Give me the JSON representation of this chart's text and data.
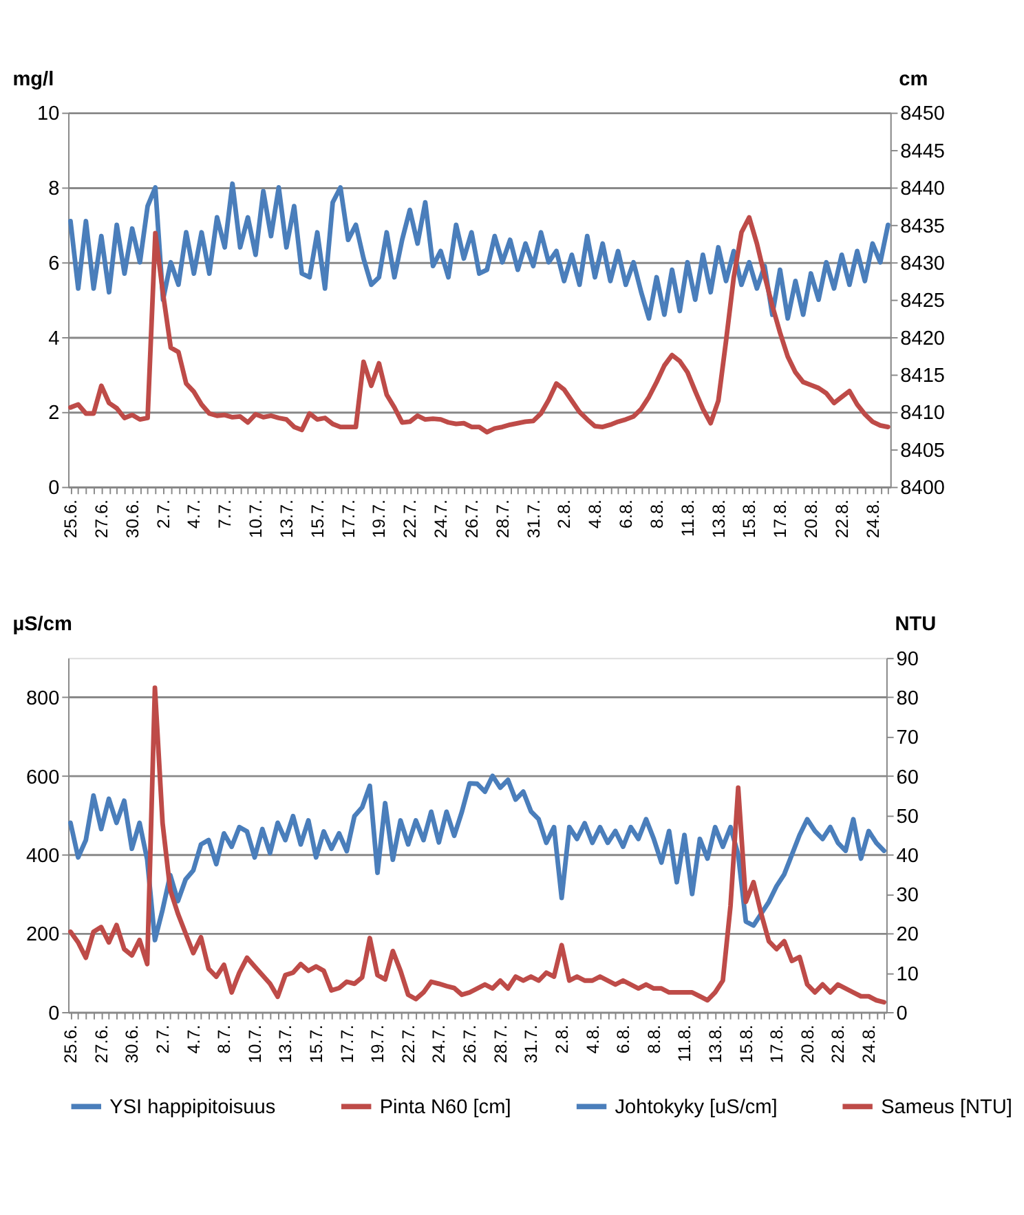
{
  "chart_data": [
    {
      "type": "line",
      "ylabel": "mg/l",
      "y2label": "cm",
      "ylim": [
        0,
        10
      ],
      "yticks": [
        0,
        2,
        4,
        6,
        8,
        10
      ],
      "y2lim": [
        8400,
        8450
      ],
      "y2ticks": [
        8400,
        8405,
        8410,
        8415,
        8420,
        8425,
        8430,
        8435,
        8440,
        8445,
        8450
      ],
      "grid": "y",
      "legend": "bottom",
      "categories": [
        "25.6.",
        null,
        null,
        null,
        "27.6.",
        null,
        null,
        null,
        "30.6.",
        null,
        null,
        null,
        "2.7.",
        null,
        null,
        null,
        "4.7.",
        null,
        null,
        null,
        "7.7.",
        null,
        null,
        null,
        "10.7.",
        null,
        null,
        null,
        "13.7.",
        null,
        null,
        null,
        "15.7.",
        null,
        null,
        null,
        "17.7.",
        null,
        null,
        null,
        "19.7.",
        null,
        null,
        null,
        "22.7.",
        null,
        null,
        null,
        "24.7.",
        null,
        null,
        null,
        "26.7.",
        null,
        null,
        null,
        "28.7.",
        null,
        null,
        null,
        "31.7.",
        null,
        null,
        null,
        "2.8.",
        null,
        null,
        null,
        "4.8.",
        null,
        null,
        null,
        "6.8.",
        null,
        null,
        null,
        "8.8.",
        null,
        null,
        null,
        "11.8.",
        null,
        null,
        null,
        "13.8.",
        null,
        null,
        null,
        "15.8.",
        null,
        null,
        null,
        "17.8.",
        null,
        null,
        null,
        "20.8.",
        null,
        null,
        null,
        "22.8.",
        null,
        null,
        null,
        "24.8.",
        null,
        null
      ],
      "series": [
        {
          "name": "YSI happipitoisuus",
          "color": "#4a7ebb",
          "values": [
            7.1,
            5.3,
            7.1,
            5.3,
            6.7,
            5.2,
            7.0,
            5.7,
            6.9,
            6.0,
            7.5,
            8.0,
            5.0,
            6.0,
            5.4,
            6.8,
            5.7,
            6.8,
            5.7,
            7.2,
            6.4,
            8.1,
            6.4,
            7.2,
            6.2,
            7.9,
            6.7,
            8.0,
            6.4,
            7.5,
            5.7,
            5.6,
            6.8,
            5.3,
            7.6,
            8.0,
            6.6,
            7.0,
            6.1,
            5.4,
            5.6,
            6.8,
            5.6,
            6.6,
            7.4,
            6.5,
            7.6,
            5.9,
            6.3,
            5.6,
            7.0,
            6.1,
            6.8,
            5.7,
            5.8,
            6.7,
            6.0,
            6.6,
            5.8,
            6.5,
            5.9,
            6.8,
            6.0,
            6.3,
            5.5,
            6.2,
            5.4,
            6.7,
            5.6,
            6.5,
            5.5,
            6.3,
            5.4,
            6.0,
            5.2,
            4.5,
            5.6,
            4.6,
            5.8,
            4.7,
            6.0,
            5.0,
            6.2,
            5.2,
            6.4,
            5.5,
            6.3,
            5.4,
            6.0,
            5.3,
            5.9,
            4.6,
            5.8,
            4.5,
            5.5,
            4.6,
            5.7,
            5.0,
            6.0,
            5.3,
            6.2,
            5.4,
            6.3,
            5.5,
            6.5,
            6.0,
            7.0
          ]
        },
        {
          "name": "Pinta N60 [cm]",
          "color": "#be4b48",
          "axis": "y2",
          "values": [
            8410.6,
            8411.0,
            8409.8,
            8409.8,
            8413.5,
            8411.2,
            8410.5,
            8409.2,
            8409.6,
            8409.0,
            8409.2,
            8433.9,
            8425.8,
            8418.6,
            8418.0,
            8413.8,
            8412.7,
            8411.0,
            8409.8,
            8409.5,
            8409.6,
            8409.3,
            8409.4,
            8408.6,
            8409.7,
            8409.3,
            8409.5,
            8409.2,
            8409.0,
            8408.0,
            8407.6,
            8409.8,
            8409.0,
            8409.2,
            8408.4,
            8408.0,
            8408.0,
            8408.0,
            8416.7,
            8413.5,
            8416.5,
            8412.3,
            8410.6,
            8408.6,
            8408.7,
            8409.5,
            8409.0,
            8409.1,
            8409.0,
            8408.6,
            8408.4,
            8408.5,
            8408.0,
            8408.0,
            8407.3,
            8407.8,
            8408.0,
            8408.3,
            8408.5,
            8408.7,
            8408.8,
            8409.8,
            8411.6,
            8413.8,
            8413.0,
            8411.5,
            8410.0,
            8409.0,
            8408.1,
            8408.0,
            8408.3,
            8408.7,
            8409.0,
            8409.4,
            8410.4,
            8412.0,
            8414.0,
            8416.2,
            8417.6,
            8416.8,
            8415.3,
            8412.8,
            8410.4,
            8408.5,
            8411.5,
            8419.5,
            8428.0,
            8434.0,
            8436.0,
            8432.5,
            8428.2,
            8424.2,
            8420.6,
            8417.4,
            8415.3,
            8414.0,
            8413.6,
            8413.2,
            8412.5,
            8411.2,
            8412.0,
            8412.8,
            8411.0,
            8409.7,
            8408.7,
            8408.2,
            8408.0
          ]
        }
      ]
    },
    {
      "type": "line",
      "ylabel": "µS/cm",
      "y2label": "NTU",
      "ylim": [
        0,
        900
      ],
      "yticks": [
        0,
        200,
        400,
        600,
        800
      ],
      "y2lim": [
        0,
        90
      ],
      "y2ticks": [
        0,
        10,
        20,
        30,
        40,
        50,
        60,
        70,
        80,
        90
      ],
      "grid": "y",
      "legend": "bottom",
      "categories": [
        "25.6.",
        null,
        null,
        null,
        "27.6.",
        null,
        null,
        null,
        "30.6.",
        null,
        null,
        null,
        "2.7.",
        null,
        null,
        null,
        "4.7.",
        null,
        null,
        null,
        "8.7.",
        null,
        null,
        null,
        "10.7.",
        null,
        null,
        null,
        "13.7.",
        null,
        null,
        null,
        "15.7.",
        null,
        null,
        null,
        "17.7.",
        null,
        null,
        null,
        "19.7.",
        null,
        null,
        null,
        "22.7.",
        null,
        null,
        null,
        "24.7.",
        null,
        null,
        null,
        "26.7.",
        null,
        null,
        null,
        "28.7.",
        null,
        null,
        null,
        "31.7.",
        null,
        null,
        null,
        "2.8.",
        null,
        null,
        null,
        "4.8.",
        null,
        null,
        null,
        "6.8.",
        null,
        null,
        null,
        "8.8.",
        null,
        null,
        null,
        "11.8.",
        null,
        null,
        null,
        "13.8.",
        null,
        null,
        null,
        "15.8.",
        null,
        null,
        null,
        "17.8.",
        null,
        null,
        null,
        "20.8.",
        null,
        null,
        null,
        "22.8.",
        null,
        null,
        null,
        "24.8.",
        null,
        null
      ],
      "series": [
        {
          "name": "Johtokyky [uS/cm]",
          "color": "#4a7ebb",
          "values": [
            481,
            393,
            437,
            550,
            465,
            542,
            481,
            537,
            415,
            481,
            387,
            183,
            260,
            348,
            282,
            337,
            360,
            426,
            437,
            376,
            454,
            420,
            470,
            459,
            393,
            465,
            404,
            481,
            437,
            498,
            426,
            487,
            393,
            459,
            415,
            454,
            409,
            498,
            520,
            575,
            354,
            531,
            387,
            487,
            426,
            487,
            437,
            509,
            431,
            509,
            448,
            509,
            581,
            580,
            560,
            600,
            570,
            590,
            540,
            560,
            510,
            490,
            430,
            470,
            290,
            470,
            440,
            480,
            430,
            470,
            430,
            460,
            420,
            470,
            440,
            490,
            440,
            380,
            460,
            330,
            450,
            300,
            440,
            390,
            470,
            420,
            470,
            400,
            230,
            220,
            250,
            280,
            320,
            350,
            400,
            450,
            490,
            460,
            440,
            470,
            430,
            410,
            490,
            390,
            460,
            430,
            410
          ]
        },
        {
          "name": "Sameus [NTU]",
          "color": "#be4b48",
          "axis": "y2",
          "values": [
            20.4,
            17.7,
            13.8,
            20.4,
            21.6,
            17.7,
            22.1,
            16.0,
            14.4,
            18.3,
            12.2,
            82.4,
            48,
            31,
            25,
            20,
            15,
            19,
            11,
            9,
            12,
            5,
            10,
            13.8,
            11.6,
            9.4,
            7.2,
            3.9,
            9.4,
            10,
            12.2,
            10.5,
            11.6,
            10.5,
            5.5,
            6.1,
            7.7,
            7.2,
            8.8,
            18.8,
            9.4,
            8.3,
            15.5,
            10.5,
            4.4,
            3.3,
            5.0,
            7.7,
            7.2,
            6.6,
            6.1,
            4.4,
            5.0,
            6,
            7,
            6,
            8,
            6,
            9,
            8,
            9,
            8,
            10,
            9,
            17,
            8,
            9,
            8,
            8,
            9,
            8,
            7,
            8,
            7,
            6,
            7,
            6,
            6,
            5,
            5,
            5,
            5,
            4,
            3,
            5,
            8,
            27,
            57,
            28,
            33,
            25,
            18,
            16,
            18,
            13,
            14,
            7,
            5,
            7,
            5,
            7,
            6,
            5,
            4,
            4,
            3,
            2.5
          ]
        }
      ]
    }
  ]
}
